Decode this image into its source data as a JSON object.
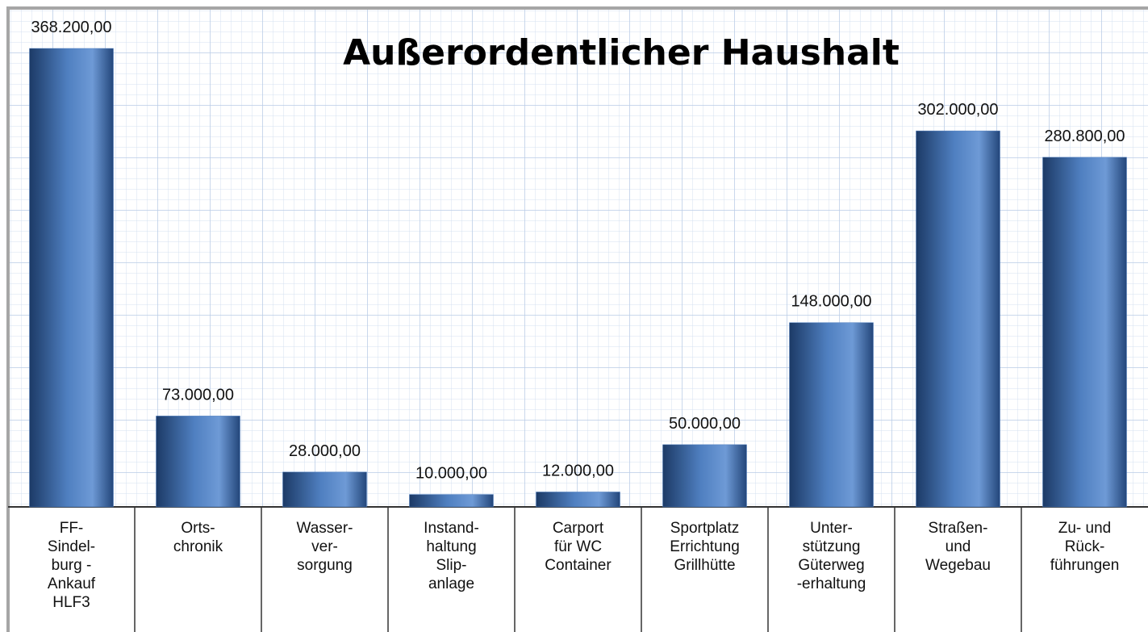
{
  "chart_data": {
    "type": "bar",
    "title": "Außerordentlicher Haushalt",
    "categories": [
      "FF-\nSindel-\nburg -\nAnkauf\nHLF3",
      "Orts-\nchronik",
      "Wasser-\nver-\nsorgung",
      "Instand-\nhaltung\nSlip-\nanlage",
      "Carport\nfür WC\nContainer",
      "Sportplatz\nErrichtung\nGrillhütte",
      "Unter-\nstützung\nGüterweg\n-erhaltung",
      "Straßen-\nund\nWegebau",
      "Zu- und\nRück-\nführungen"
    ],
    "values": [
      368200,
      73000,
      28000,
      10000,
      12000,
      50000,
      148000,
      302000,
      280800
    ],
    "value_labels": [
      "368.200,00",
      "73.000,00",
      "28.000,00",
      "10.000,00",
      "12.000,00",
      "50.000,00",
      "148.000,00",
      "302.000,00",
      "280.800,00"
    ],
    "color": "#4f7fc0"
  }
}
